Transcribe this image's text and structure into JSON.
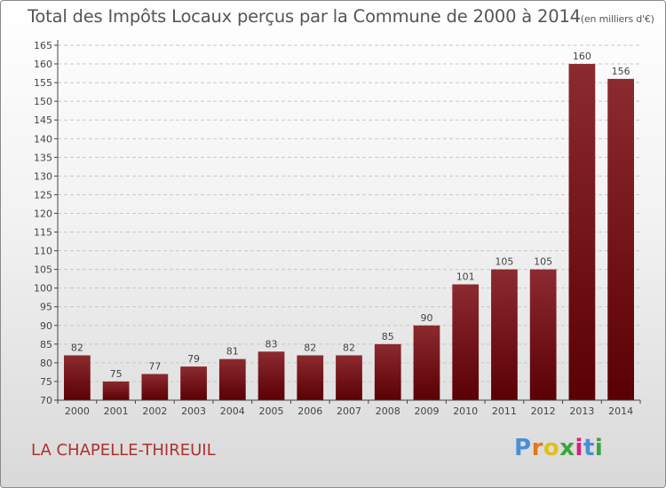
{
  "title": "Total des Impôts Locaux perçus par la Commune de 2000 à 2014",
  "title_unit": "(en milliers d'€)",
  "commune": "LA CHAPELLE-THIREUIL",
  "logo": {
    "letters": [
      "P",
      "r",
      "o",
      "x",
      "i",
      "t",
      "i"
    ],
    "colors": [
      "#4a8fd4",
      "#e07a1a",
      "#e0c01a",
      "#3aa63a",
      "#d4207a",
      "#4a8fd4",
      "#3aa63a"
    ]
  },
  "chart_data": {
    "type": "bar",
    "categories": [
      "2000",
      "2001",
      "2002",
      "2003",
      "2004",
      "2005",
      "2006",
      "2007",
      "2008",
      "2009",
      "2010",
      "2011",
      "2012",
      "2013",
      "2014"
    ],
    "values": [
      82,
      75,
      77,
      79,
      81,
      83,
      82,
      82,
      85,
      90,
      101,
      105,
      105,
      160,
      156
    ],
    "ylim": [
      70,
      165
    ],
    "ytick_step": 5,
    "grid": true,
    "bar_color": "#7a1a1e"
  }
}
